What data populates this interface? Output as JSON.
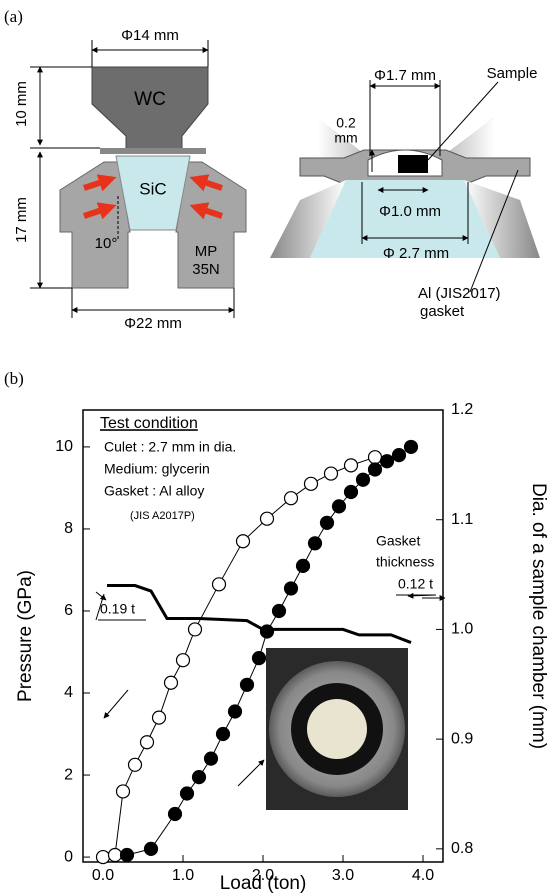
{
  "panel_labels": [
    "(a)",
    "(b)"
  ],
  "diagram": {
    "left": {
      "top_diameter": "Φ14 mm",
      "upper_height": "10 mm",
      "lower_height": "17 mm",
      "anvil": "WC",
      "seat": "SiC",
      "holder": [
        "MP",
        "35N"
      ],
      "angle": "10°",
      "bottom_diameter": "Φ22 mm"
    },
    "right": {
      "hole_diameter": "Φ1.7 mm",
      "sample": "Sample",
      "thickness": [
        "0.2",
        "mm"
      ],
      "inner_diameter": "Φ1.0 mm",
      "culet_diameter": "Φ 2.7 mm",
      "gasket": [
        "Al (JIS2017)",
        "gasket"
      ]
    }
  },
  "chart_data": {
    "type": "scatter",
    "x_label": "Load (ton)",
    "y_label": "Pressure (GPa)",
    "y2_label": "Dia. of a sample chamber (mm)",
    "xlim": [
      -0.25,
      4.25
    ],
    "xticks": [
      {
        "value": 0,
        "label": "0.0"
      },
      {
        "value": 1,
        "label": "1.0"
      },
      {
        "value": 2,
        "label": "2.0"
      },
      {
        "value": 3,
        "label": "3.0"
      },
      {
        "value": 4,
        "label": "4.0"
      }
    ],
    "ylim": [
      -0.12,
      10.9
    ],
    "yticks": [
      0,
      2,
      4,
      6,
      8,
      10
    ],
    "y2lim": [
      0.788,
      1.2
    ],
    "y2ticks": [
      0.8,
      0.9,
      {
        "value": 1,
        "label": "1.0"
      },
      1.1,
      1.2
    ],
    "series": [
      {
        "color": "#000000",
        "fill": "#ffffff",
        "x": [
          0.0,
          0.15,
          0.25,
          0.4,
          0.55,
          0.7,
          0.85,
          1.0,
          1.15,
          1.45,
          1.75,
          2.05,
          2.35,
          2.6,
          2.85,
          3.1,
          3.4
        ],
        "values": [
          0.0,
          0.05,
          1.6,
          2.25,
          2.8,
          3.4,
          4.25,
          4.8,
          5.55,
          6.65,
          7.7,
          8.25,
          8.75,
          9.1,
          9.35,
          9.55,
          9.75
        ]
      },
      {
        "color": "#000000",
        "fill": "#000000",
        "x": [
          0.3,
          0.6,
          0.9,
          1.05,
          1.2,
          1.35,
          1.5,
          1.65,
          1.8,
          1.95,
          2.05,
          2.2,
          2.35,
          2.5,
          2.65,
          2.8,
          2.95,
          3.1,
          3.25,
          3.4,
          3.55,
          3.7,
          3.85
        ],
        "values": [
          0.05,
          0.2,
          1.05,
          1.55,
          1.95,
          2.4,
          3.0,
          3.55,
          4.2,
          4.85,
          5.5,
          6.0,
          6.55,
          7.1,
          7.65,
          8.15,
          8.55,
          8.9,
          9.2,
          9.45,
          9.65,
          9.8,
          10.0
        ]
      },
      {
        "color": "#000000",
        "axis": "y2",
        "line_width": 3,
        "x": [
          0.05,
          0.4,
          0.6,
          0.8,
          1.2,
          1.8,
          2.0,
          3.0,
          3.2,
          3.6,
          3.85
        ],
        "values": [
          1.04,
          1.04,
          1.035,
          1.01,
          1.01,
          1.008,
          1.0,
          1.0,
          0.995,
          0.995,
          0.988
        ]
      }
    ],
    "annotations": {
      "heading": "Test condition",
      "lines": [
        "Culet : 2.7 mm in dia.",
        "Medium: glycerin",
        "Gasket : Al alloy",
        "(JIS A2017P)"
      ],
      "gasket": [
        "Gasket",
        "thickness"
      ],
      "start_thickness": "0.19 t",
      "end_thickness": "0.12 t"
    }
  }
}
